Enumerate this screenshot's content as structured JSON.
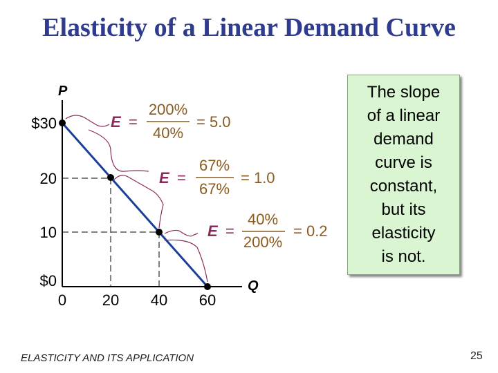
{
  "title": "Elasticity of a Linear Demand Curve",
  "axes": {
    "y_label": "P",
    "x_label": "Q"
  },
  "y_ticks": [
    "$30",
    "20",
    "10",
    "$0"
  ],
  "x_ticks": [
    "0",
    "20",
    "40",
    "60"
  ],
  "colors": {
    "title": "#2e3b8f",
    "curve": "#1a3e9a",
    "bracket": "#8b2a5c",
    "formula": "#8b5a1e",
    "note_bg": "#d9f5d1"
  },
  "chart_data": {
    "type": "line",
    "x": [
      0,
      20,
      40,
      60
    ],
    "y": [
      30,
      20,
      10,
      0
    ],
    "xlim": [
      0,
      60
    ],
    "ylim": [
      0,
      30
    ]
  },
  "elasticity": [
    {
      "label": "E",
      "eq": "=",
      "numerator": "200%",
      "denominator": "40%",
      "result": "= 5.0"
    },
    {
      "label": "E",
      "eq": "=",
      "numerator": "67%",
      "denominator": "67%",
      "result": "= 1.0"
    },
    {
      "label": "E",
      "eq": "=",
      "numerator": "40%",
      "denominator": "200%",
      "result": "= 0.2"
    }
  ],
  "note_lines": [
    "The slope",
    "of a linear",
    "demand",
    "curve is",
    "constant,",
    "but its",
    "elasticity",
    "is not."
  ],
  "footer": "ELASTICITY AND ITS APPLICATION",
  "page_number": "25"
}
